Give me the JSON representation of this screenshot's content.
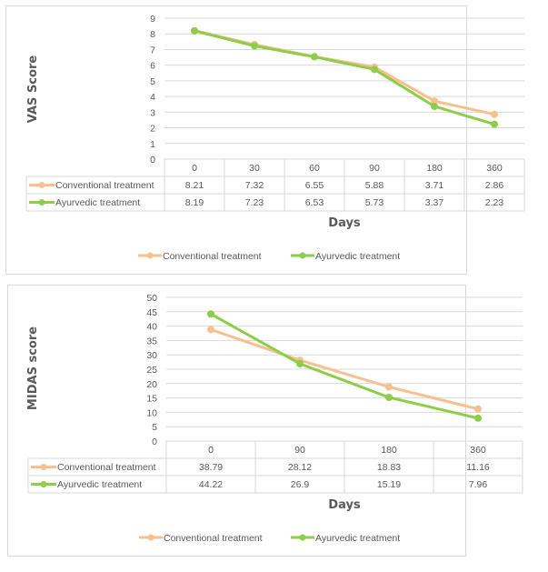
{
  "colors": {
    "conventional": "#f8c08f",
    "ayurvedic": "#8dcd4a",
    "grid": "#d9d9d9",
    "text": "#595959"
  },
  "chart_data": [
    {
      "type": "line",
      "title": "",
      "xlabel": "Days",
      "ylabel": "VAS Score",
      "ylim": [
        0,
        9
      ],
      "yticks": [
        "0",
        "1",
        "2",
        "3",
        "4",
        "5",
        "6",
        "7",
        "8",
        "9"
      ],
      "categories": [
        "0",
        "30",
        "60",
        "90",
        "180",
        "360"
      ],
      "series": [
        {
          "name": "Conventional treatment",
          "values": [
            8.21,
            7.32,
            6.55,
            5.88,
            3.71,
            2.86
          ]
        },
        {
          "name": "Ayurvedic treatment",
          "values": [
            8.19,
            7.23,
            6.53,
            5.73,
            3.37,
            2.23
          ]
        }
      ],
      "grid": true,
      "data_table": true,
      "legend": "bottom"
    },
    {
      "type": "line",
      "title": "",
      "xlabel": "Days",
      "ylabel": "MIDAS score",
      "ylim": [
        0,
        50
      ],
      "yticks": [
        "0",
        "5",
        "10",
        "15",
        "20",
        "25",
        "30",
        "35",
        "40",
        "45",
        "50"
      ],
      "categories": [
        "0",
        "90",
        "180",
        "360"
      ],
      "series": [
        {
          "name": "Conventional treatment",
          "values": [
            38.79,
            28.12,
            18.83,
            11.16
          ]
        },
        {
          "name": "Ayurvedic treatment",
          "values": [
            44.22,
            26.9,
            15.19,
            7.96
          ]
        }
      ],
      "grid": true,
      "data_table": true,
      "legend": "bottom"
    }
  ]
}
